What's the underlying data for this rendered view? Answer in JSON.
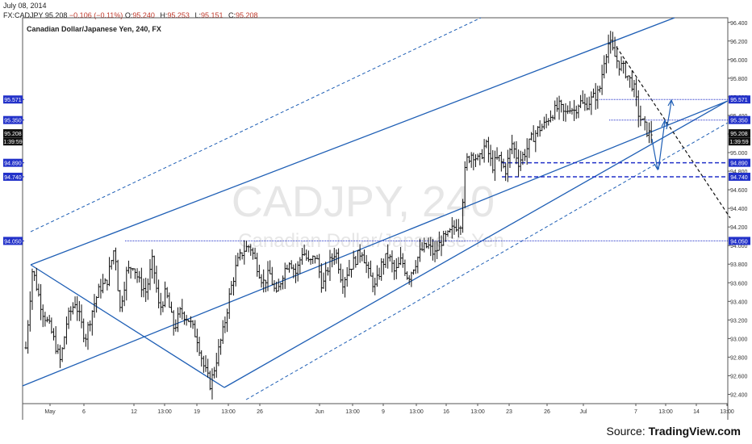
{
  "header": {
    "date": "July 08, 2014",
    "symbol": "FX:CADJPY",
    "last": "95.208",
    "change": "−0.106 (−0.11%)",
    "o_label": "O:",
    "o_value": "95.240",
    "h_label": "H:",
    "h_value": "95.253",
    "l_label": "L:",
    "l_value": "95.151",
    "c_label": "C:",
    "c_value": "95.208"
  },
  "chart_data": {
    "type": "ohlc",
    "title": "Canadian Dollar/Japanese Yen, 240, FX",
    "watermark_symbol": "CADJPY, 240",
    "watermark_name": "Canadian Dollar/Japanese Yen",
    "ylim": [
      92.3,
      96.45
    ],
    "y_ticks": [
      "92.400",
      "92.600",
      "92.800",
      "93.000",
      "93.200",
      "93.400",
      "93.600",
      "93.800",
      "94.000",
      "94.200",
      "94.400",
      "94.600",
      "94.800",
      "95.000",
      "95.200",
      "95.400",
      "95.600",
      "95.800",
      "96.000",
      "96.200",
      "96.400"
    ],
    "x_ticks": [
      "May",
      "6",
      "12",
      "13:00",
      "19",
      "13:00",
      "26",
      "Jun",
      "13:00",
      "9",
      "13:00",
      "16",
      "13:00",
      "23",
      "26",
      "Jul",
      "7",
      "13:00",
      "14",
      "13:00"
    ],
    "price_badges": [
      {
        "label": "95.571",
        "value": 95.571
      },
      {
        "label": "95.350",
        "value": 95.35
      },
      {
        "label": "95.208",
        "value": 95.208
      },
      {
        "label": "1:39:59",
        "value": 95.12
      },
      {
        "label": "94.890",
        "value": 94.89
      },
      {
        "label": "94.740",
        "value": 94.74
      },
      {
        "label": "94.050",
        "value": 94.05
      }
    ],
    "horizontal_levels": [
      95.571,
      95.35,
      94.89,
      94.74,
      94.05
    ],
    "colors": {
      "trend": "#1f5fb5",
      "badge": "#2231c9",
      "last_badge": "#111111",
      "bars": "#111111",
      "watermark": "#e6e6e6"
    },
    "price_path": [
      [
        0,
        92.9
      ],
      [
        8,
        93.75
      ],
      [
        20,
        93.3
      ],
      [
        30,
        93.1
      ],
      [
        42,
        92.75
      ],
      [
        50,
        93.2
      ],
      [
        60,
        93.4
      ],
      [
        72,
        93.0
      ],
      [
        82,
        93.35
      ],
      [
        90,
        93.55
      ],
      [
        98,
        93.6
      ],
      [
        108,
        94.0
      ],
      [
        114,
        93.3
      ],
      [
        122,
        93.7
      ],
      [
        130,
        93.8
      ],
      [
        138,
        93.6
      ],
      [
        146,
        93.5
      ],
      [
        154,
        93.85
      ],
      [
        162,
        93.3
      ],
      [
        170,
        93.5
      ],
      [
        180,
        93.1
      ],
      [
        188,
        93.3
      ],
      [
        198,
        93.2
      ],
      [
        208,
        93.0
      ],
      [
        216,
        92.7
      ],
      [
        224,
        92.5
      ],
      [
        232,
        92.8
      ],
      [
        240,
        93.1
      ],
      [
        248,
        93.5
      ],
      [
        256,
        93.8
      ],
      [
        264,
        93.95
      ],
      [
        272,
        94.0
      ],
      [
        280,
        93.8
      ],
      [
        288,
        93.6
      ],
      [
        296,
        93.7
      ],
      [
        304,
        93.45
      ],
      [
        312,
        93.7
      ],
      [
        320,
        93.85
      ],
      [
        328,
        93.7
      ],
      [
        336,
        93.95
      ],
      [
        344,
        93.8
      ],
      [
        352,
        93.9
      ],
      [
        360,
        93.55
      ],
      [
        368,
        93.8
      ],
      [
        376,
        93.95
      ],
      [
        384,
        93.6
      ],
      [
        392,
        93.75
      ],
      [
        400,
        93.85
      ],
      [
        408,
        93.95
      ],
      [
        416,
        93.7
      ],
      [
        424,
        93.55
      ],
      [
        432,
        93.8
      ],
      [
        440,
        93.9
      ],
      [
        448,
        93.7
      ],
      [
        456,
        93.85
      ],
      [
        464,
        93.65
      ],
      [
        472,
        93.8
      ],
      [
        480,
        93.95
      ],
      [
        488,
        94.0
      ],
      [
        496,
        93.9
      ],
      [
        504,
        94.05
      ],
      [
        512,
        94.1
      ],
      [
        520,
        94.2
      ],
      [
        528,
        94.25
      ],
      [
        534,
        94.9
      ],
      [
        542,
        95.0
      ],
      [
        550,
        94.9
      ],
      [
        558,
        95.1
      ],
      [
        566,
        94.85
      ],
      [
        574,
        94.95
      ],
      [
        582,
        94.8
      ],
      [
        590,
        95.1
      ],
      [
        598,
        94.9
      ],
      [
        606,
        95.0
      ],
      [
        614,
        95.15
      ],
      [
        622,
        95.25
      ],
      [
        630,
        95.3
      ],
      [
        636,
        95.4
      ],
      [
        642,
        95.45
      ],
      [
        648,
        95.5
      ],
      [
        654,
        95.4
      ],
      [
        660,
        95.5
      ],
      [
        666,
        95.45
      ],
      [
        672,
        95.55
      ],
      [
        678,
        95.5
      ],
      [
        684,
        95.55
      ],
      [
        690,
        95.6
      ],
      [
        696,
        95.65
      ],
      [
        702,
        96.0
      ],
      [
        708,
        96.2
      ],
      [
        714,
        96.05
      ],
      [
        720,
        95.95
      ],
      [
        726,
        95.9
      ],
      [
        732,
        95.8
      ],
      [
        738,
        95.7
      ],
      [
        744,
        95.4
      ],
      [
        750,
        95.3
      ],
      [
        756,
        95.2
      ],
      [
        760,
        95.21
      ]
    ]
  },
  "footer": {
    "source_prefix": "Source: ",
    "source_name": "TradingView.com"
  }
}
